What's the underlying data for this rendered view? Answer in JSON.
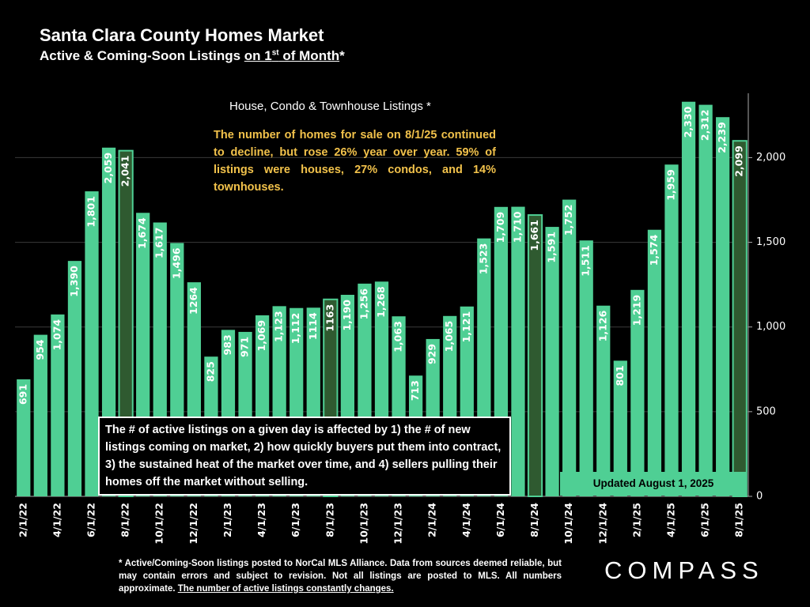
{
  "chart_data": {
    "type": "bar",
    "title": "Santa Clara County Homes Market",
    "subtitle": {
      "text": "Active & Coming-Soon Listings ",
      "underlined": "on 1",
      "superscript": "st",
      "underlined_rest": " of Month",
      "suffix": "*"
    },
    "chart_heading": "House, Condo & Townhouse Listings *",
    "summary": "The number of homes for sale on 8/1/25 continued to decline, but rose 26% year over year. 59% of listings were houses, 27% condos, and 14% townhouses.",
    "note": "The # of active listings on a given day is affected by 1) the # of new listings coming on market, 2) how quickly buyers put them into contract, 3) the sustained heat of the market over time, and 4) sellers pulling their homes off the market without selling.",
    "updated": "Updated August 1, 2025",
    "footnote": {
      "text": "* Active/Coming-Soon listings posted to NorCal MLS Alliance.  Data from sources deemed reliable, but may contain errors and subject to revision.  Not all listings are posted to MLS. All numbers approximate. ",
      "underlined": "The number of active listings constantly changes."
    },
    "logo": "COMPASS",
    "categories": [
      "2/1/22",
      null,
      "4/1/22",
      null,
      "6/1/22",
      null,
      "8/1/22",
      null,
      "10/1/22",
      null,
      "12/1/22",
      null,
      "2/1/23",
      null,
      "4/1/23",
      null,
      "6/1/23",
      null,
      "8/1/23",
      null,
      "10/1/23",
      null,
      "12/1/23",
      null,
      "2/1/24",
      null,
      "4/1/24",
      null,
      "6/1/24",
      null,
      "8/1/24",
      null,
      "10/1/24",
      null,
      "12/1/24",
      null,
      "2/1/25",
      null,
      "4/1/25",
      null,
      "6/1/25",
      null,
      "8/1/25"
    ],
    "values": [
      691,
      954,
      1074,
      1390,
      1801,
      2059,
      2041,
      1674,
      1617,
      1496,
      1264,
      825,
      983,
      971,
      1069,
      1123,
      1112,
      1114,
      1163,
      1190,
      1256,
      1268,
      1063,
      713,
      929,
      1065,
      1121,
      1523,
      1709,
      1710,
      1661,
      1591,
      1752,
      1511,
      1126,
      801,
      1219,
      1574,
      1959,
      2330,
      2312,
      2239,
      2099
    ],
    "value_labels": [
      "691",
      "954",
      "1,074",
      "1,390",
      "1,801",
      "2,059",
      "2,041",
      "1,674",
      "1,617",
      "1,496",
      "1264",
      "825",
      "983",
      "971",
      "1,069",
      "1,123",
      "1,112",
      "1114",
      "1163",
      "1,190",
      "1,256",
      "1,268",
      "1,063",
      "713",
      "929",
      "1,065",
      "1,121",
      "1,523",
      "1,709",
      "1,710",
      "1,661",
      "1,591",
      "1,752",
      "1,511",
      "1,126",
      "801",
      "1,219",
      "1,574",
      "1,959",
      "2,330",
      "2,312",
      "2,239",
      "2,099"
    ],
    "color": "#4fcf94",
    "bar_colors": [
      "#4fcf94",
      "#4fcf94",
      "#4fcf94",
      "#4fcf94",
      "#4fcf94",
      "#4fcf94",
      "#2f5a30",
      "#4fcf94",
      "#4fcf94",
      "#4fcf94",
      "#4fcf94",
      "#4fcf94",
      "#4fcf94",
      "#4fcf94",
      "#4fcf94",
      "#4fcf94",
      "#4fcf94",
      "#4fcf94",
      "#2f5a30",
      "#4fcf94",
      "#4fcf94",
      "#4fcf94",
      "#4fcf94",
      "#4fcf94",
      "#4fcf94",
      "#4fcf94",
      "#4fcf94",
      "#4fcf94",
      "#4fcf94",
      "#4fcf94",
      "#2f5a30",
      "#4fcf94",
      "#4fcf94",
      "#4fcf94",
      "#4fcf94",
      "#4fcf94",
      "#4fcf94",
      "#4fcf94",
      "#4fcf94",
      "#4fcf94",
      "#4fcf94",
      "#4fcf94",
      "#2f5a30"
    ],
    "ylim": [
      0,
      2380
    ],
    "yticks": [
      0,
      500,
      {
        "value": 1000,
        "label": "1,000"
      },
      {
        "value": 1500,
        "label": "1,500"
      },
      {
        "value": 2000,
        "label": "2,000"
      }
    ],
    "grid": true
  }
}
